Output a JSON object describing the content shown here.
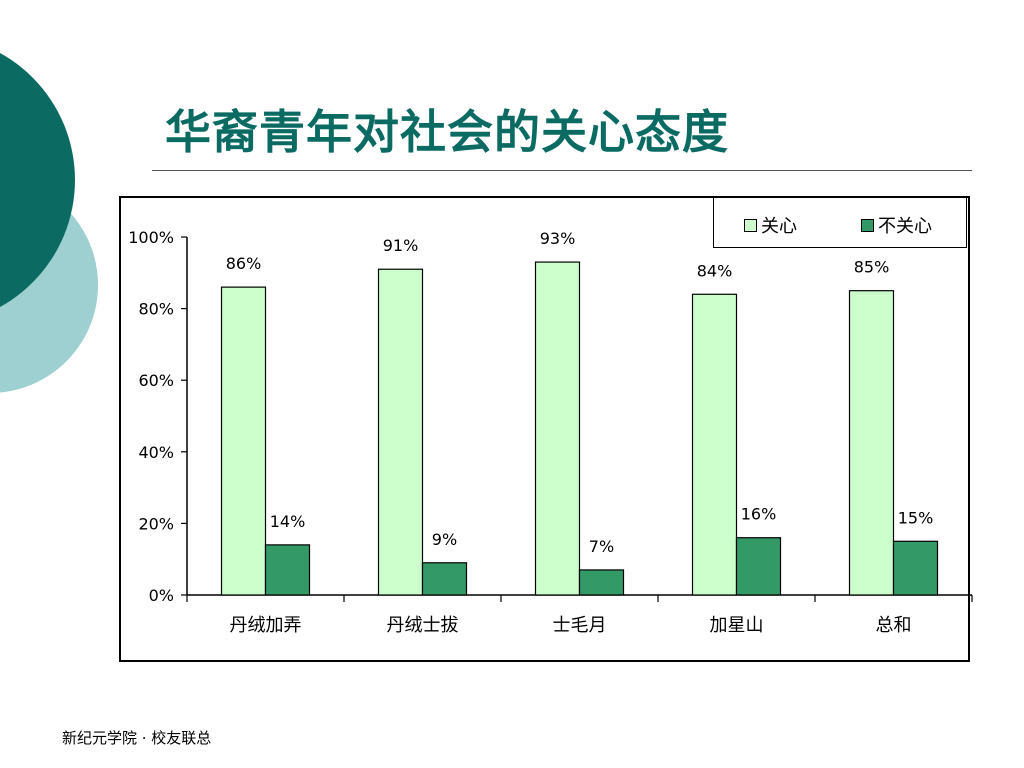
{
  "slide": {
    "title": "华裔青年对社会的关心态度",
    "footer": "新纪元学院 · 校友联总"
  },
  "colors": {
    "title": "#0b6b63",
    "decor_dark": "#0b6b63",
    "decor_light": "#9ecfd1",
    "series_care": "#ccffcc",
    "series_not_care": "#339966"
  },
  "chart_data": {
    "type": "bar",
    "title": "",
    "xlabel": "",
    "ylabel": "",
    "categories": [
      "丹绒加弄",
      "丹绒士拔",
      "士毛月",
      "加星山",
      "总和"
    ],
    "series": [
      {
        "name": "关心",
        "values": [
          86,
          91,
          93,
          84,
          85
        ],
        "labels": [
          "86%",
          "91%",
          "93%",
          "84%",
          "85%"
        ],
        "color": "#ccffcc"
      },
      {
        "name": "不关心",
        "values": [
          14,
          9,
          7,
          16,
          15
        ],
        "labels": [
          "14%",
          "9%",
          "7%",
          "16%",
          "15%"
        ],
        "color": "#339966"
      }
    ],
    "ylim": [
      0,
      100
    ],
    "yticks": [
      0,
      20,
      40,
      60,
      80,
      100
    ],
    "ytick_labels": [
      "0%",
      "20%",
      "40%",
      "60%",
      "80%",
      "100%"
    ],
    "grid": false,
    "legend": "top-right"
  }
}
